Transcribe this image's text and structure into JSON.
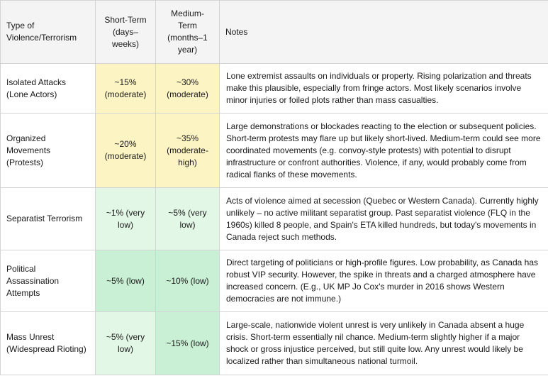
{
  "headers": {
    "type": "Type of Violence/Terrorism",
    "short": "Short-Term (days–weeks)",
    "medium": "Medium-Term (months–1 year)",
    "notes": "Notes"
  },
  "rows": [
    {
      "type": "Isolated Attacks (Lone Actors)",
      "short": "~15% (moderate)",
      "medium": "~30% (moderate)",
      "notes": "Lone extremist assaults on individuals or property. Rising polarization and threats make this plausible, especially from fringe actors. Most likely scenarios involve minor injuries or foiled plots rather than mass casualties.",
      "short_color": "#fdf4c4",
      "medium_color": "#fdf4c4"
    },
    {
      "type": "Organized Movements (Protests)",
      "short": "~20% (moderate)",
      "medium": "~35% (moderate-high)",
      "notes": "Large demonstrations or blockades reacting to the election or subsequent policies. Short-term protests may flare up but likely short-lived. Medium-term could see more coordinated movements (e.g. convoy-style protests) with potential to disrupt infrastructure or confront authorities. Violence, if any, would probably come from radical flanks of these movements.",
      "short_color": "#fdf4c4",
      "medium_color": "#fdf4c4"
    },
    {
      "type": "Separatist Terrorism",
      "short": "~1% (very low)",
      "medium": "~5% (very low)",
      "notes": "Acts of violence aimed at secession (Quebec or Western Canada). Currently highly unlikely – no active militant separatist group. Past separatist violence (FLQ in the 1960s) killed 8 people, and Spain's ETA killed hundreds, but today's movements in Canada reject such methods.",
      "short_color": "#e2f7e6",
      "medium_color": "#e2f7e6"
    },
    {
      "type": "Political Assassination Attempts",
      "short": "~5% (low)",
      "medium": "~10% (low)",
      "notes": "Direct targeting of politicians or high-profile figures. Low probability, as Canada has robust VIP security. However, the spike in threats and a charged atmosphere have increased concern. (E.g., UK MP Jo Cox's murder in 2016 shows Western democracies are not immune.)",
      "short_color": "#c9f0d5",
      "medium_color": "#c9f0d5"
    },
    {
      "type": "Mass Unrest (Widespread Rioting)",
      "short": "~5% (very low)",
      "medium": "~15% (low)",
      "notes": "Large-scale, nationwide violent unrest is very unlikely in Canada absent a huge crisis. Short-term essentially nil chance. Medium-term slightly higher if a major shock or gross injustice perceived, but still quite low. Any unrest would likely be localized rather than simultaneous national turmoil.",
      "short_color": "#e2f7e6",
      "medium_color": "#c9f0d5"
    }
  ]
}
